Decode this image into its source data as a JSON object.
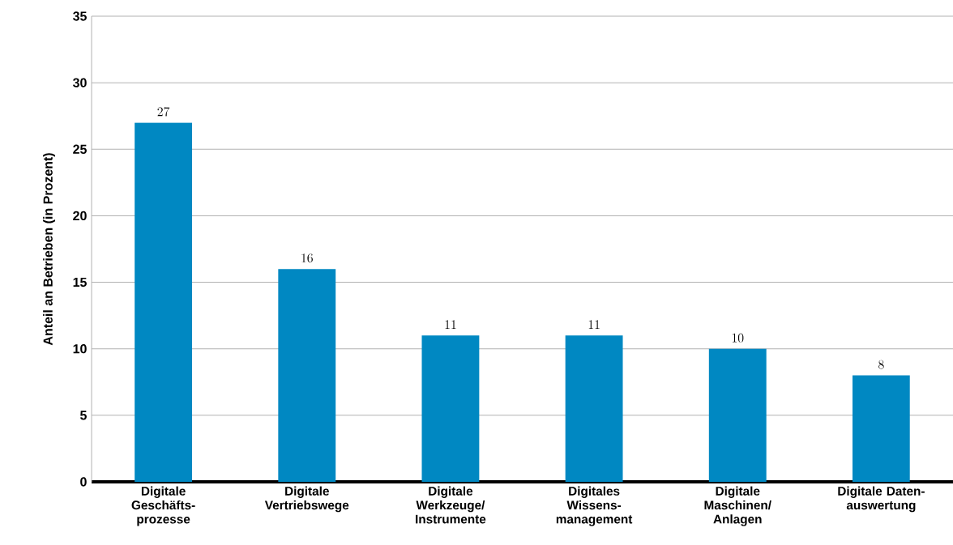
{
  "chart_data": {
    "type": "bar",
    "ylabel": "Anteil an Betrieben (in Prozent)",
    "categories": [
      "Digitale Geschäfts-prozesse",
      "Digitale Vertriebswege",
      "Digitale Werkzeuge/ Instrumente",
      "Digitales Wissens-management",
      "Digitale Maschinen/ Anlagen",
      "Digitale Daten-auswertung"
    ],
    "values": [
      27,
      16,
      11,
      11,
      10,
      8
    ],
    "color": "#0088c2",
    "ylim": [
      0,
      35
    ],
    "yticks": [
      0,
      5,
      10,
      15,
      20,
      25,
      30,
      35
    ],
    "grid": "y",
    "data_labels": true
  }
}
